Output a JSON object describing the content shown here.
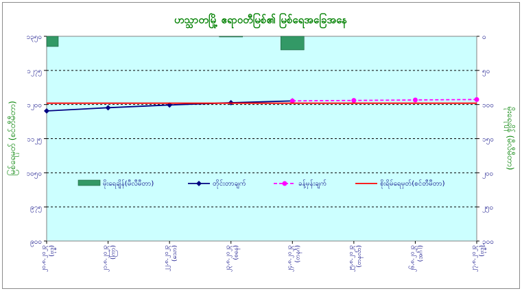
{
  "chart_data": {
    "type": "line",
    "title": "ဟသ္သာတမြို့ ဧရာဝတီမြစ်၏ မြစ်ရေအခြေအနေ",
    "ylabel": "မြစ်ရေမှတ် (စင်တီမီတာ)",
    "y2label": "မိုးရေချိန် (မီလီမီတာ)",
    "categories": [
      "၂၀.၈.၂၀၂၃ (ဗုဒ္ဓဟူး)",
      "၂၁.၈.၂၀၂၃ (ကြာသပတေး)",
      "၂၂.၈.၂၀၂၃ (သောကြာ)",
      "၂၃.၈.၂၀၂၃ (စနေ)",
      "၂၄.၈.၂၀၂၃ (တနင်္ဂနွေ)",
      "၂၅.၈.၂၀၂၃ (တနင်္လာ)",
      "၂၆.၈.၂၀၂၃ (အင်္ဂါ)",
      "၂၇.၈.၂၀၂၃ (ဗုဒ္ဓဟူး)"
    ],
    "x_tick_labels": [
      [
        "၂၀.၈.၂၀၂၃",
        "(ဗုဒ္ဓ)"
      ],
      [
        "၂၁.၈.၂၀၂၃",
        "(ကြာ)"
      ],
      [
        "၂၂.၈.၂၀၂၃",
        "(သော)"
      ],
      [
        "၂၃.၈.၂၀၂၃",
        "(စနေ)"
      ],
      [
        "၂၄.၈.၂၀၂၃",
        "(တနင်္ဂ)"
      ],
      [
        "၂၅.၈.၂၀၂၃",
        "(တနင်္လာ)"
      ],
      [
        "၂၆.၈.၂၀၂၃",
        "(အင်္ဂါ)"
      ],
      [
        "၂၇.၈.၂၀၂၃",
        "(ဗုဒ္ဓ)"
      ]
    ],
    "ylim": [
      900,
      1350
    ],
    "y_ticks": [
      {
        "value": 900,
        "label": "၉၀၀"
      },
      {
        "value": 975,
        "label": "၉၇၅"
      },
      {
        "value": 1050,
        "label": "၁၀၅၀"
      },
      {
        "value": 1125,
        "label": "၁၁၂၅"
      },
      {
        "value": 1200,
        "label": "၁၂၀၀"
      },
      {
        "value": 1275,
        "label": "၁၂၇၅"
      },
      {
        "value": 1350,
        "label": "၁၃၅၀"
      }
    ],
    "y2lim": [
      0,
      300
    ],
    "y2_inverted": true,
    "y2_ticks": [
      {
        "value": 0,
        "label": "၀"
      },
      {
        "value": 50,
        "label": "၅၀"
      },
      {
        "value": 100,
        "label": "၁၀၀"
      },
      {
        "value": 150,
        "label": "၁၅၀"
      },
      {
        "value": 200,
        "label": "၂၀၀"
      },
      {
        "value": 250,
        "label": "၂၅၀"
      },
      {
        "value": 300,
        "label": "၃၀၀"
      }
    ],
    "dashed_gridlines_at": [
      975,
      1050,
      1125,
      1200,
      1275
    ],
    "rain_series": {
      "name": "မိုးရေချိန်(မီလီမီတာ)",
      "color": "#339966",
      "values": [
        15,
        0,
        0,
        1,
        20,
        0,
        0,
        0
      ]
    },
    "series": [
      {
        "name": "တိုင်းတာချက်",
        "color": "#000080",
        "style": "solid",
        "marker": "diamond",
        "values": [
          1186,
          1193,
          1199,
          1204,
          1208,
          null,
          null,
          null
        ]
      },
      {
        "name": "ခန့်မှန်းချက်",
        "color": "#ff00ff",
        "style": "dashed",
        "marker": "circle",
        "values": [
          null,
          null,
          null,
          null,
          1208,
          1209,
          1210,
          1211
        ]
      },
      {
        "name": "စိုးရိမ်ရေမှတ်(စင်တီမီတာ)",
        "color": "#ff0000",
        "style": "solid",
        "marker": "none",
        "values": [
          1203,
          1203,
          1203,
          1203,
          1203,
          1203,
          1203,
          1203
        ]
      }
    ],
    "legend_order": [
      "rain",
      0,
      1,
      2
    ],
    "legend_placement": "inside, middle",
    "background_color": "#ccffff",
    "title_color": "#008000"
  }
}
